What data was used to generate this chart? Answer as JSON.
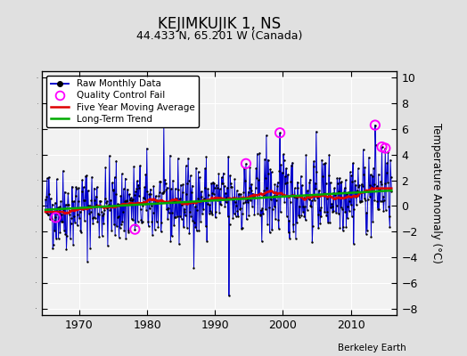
{
  "title": "KEJIMKUJIK 1, NS",
  "subtitle": "44.433 N, 65.201 W (Canada)",
  "ylabel": "Temperature Anomaly (°C)",
  "credit": "Berkeley Earth",
  "ylim": [
    -8.5,
    10.5
  ],
  "xlim": [
    1964.5,
    2016.8
  ],
  "yticks": [
    -8,
    -6,
    -4,
    -2,
    0,
    2,
    4,
    6,
    8,
    10
  ],
  "xticks": [
    1970,
    1980,
    1990,
    2000,
    2010
  ],
  "bg_color": "#e0e0e0",
  "plot_bg_color": "#f2f2f2",
  "raw_color": "#0000cc",
  "ma_color": "#dd0000",
  "trend_color": "#00aa00",
  "qc_color": "#ff00ff",
  "seed": 42,
  "n_points": 612,
  "start_year": 1965.0,
  "end_year": 2016.0
}
